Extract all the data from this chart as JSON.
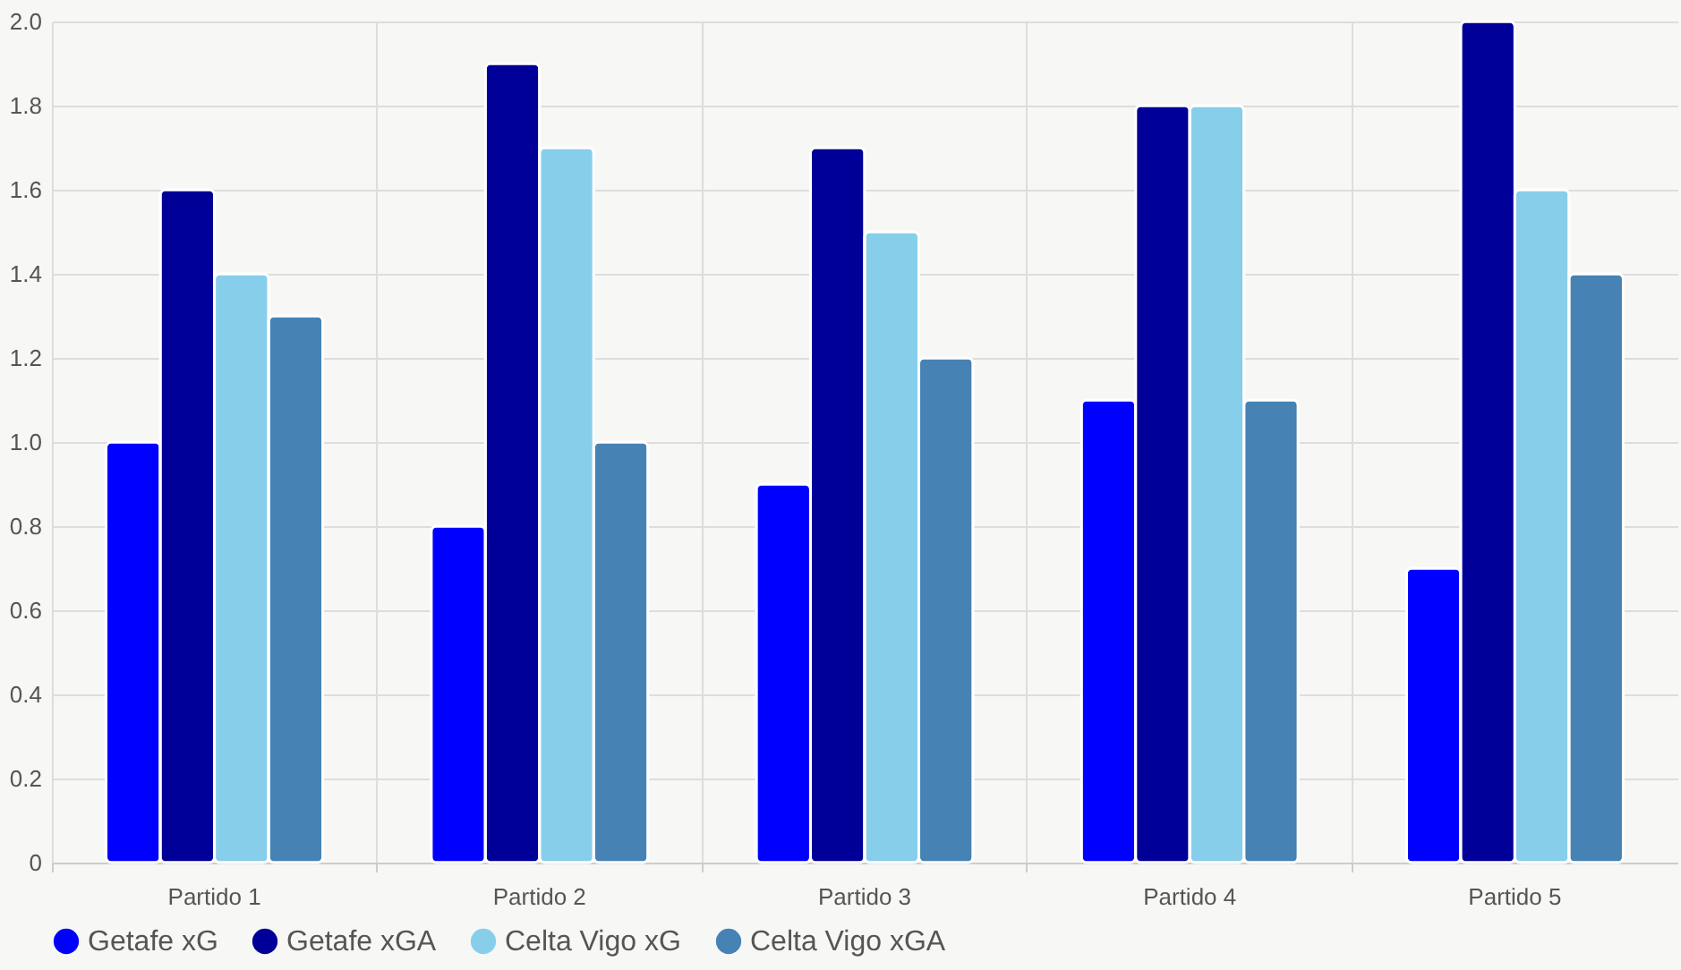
{
  "chart_data": {
    "type": "bar",
    "categories": [
      "Partido 1",
      "Partido 2",
      "Partido 3",
      "Partido 4",
      "Partido 5"
    ],
    "series": [
      {
        "name": "Getafe xG",
        "color": "#0000ff",
        "values": [
          1.0,
          0.8,
          0.9,
          1.1,
          0.7
        ]
      },
      {
        "name": "Getafe xGA",
        "color": "#000099",
        "values": [
          1.6,
          1.9,
          1.7,
          1.8,
          2.0
        ]
      },
      {
        "name": "Celta Vigo xG",
        "color": "#87ceeb",
        "values": [
          1.4,
          1.7,
          1.5,
          1.8,
          1.6
        ]
      },
      {
        "name": "Celta Vigo xGA",
        "color": "#4682b4",
        "values": [
          1.3,
          1.0,
          1.2,
          1.1,
          1.4
        ]
      }
    ],
    "ylim": [
      0,
      2
    ],
    "yticks": [
      0,
      0.2,
      0.4,
      0.6,
      0.8,
      {
        "value": 1,
        "label": "1.0"
      },
      1.2,
      1.4,
      1.6,
      1.8,
      {
        "value": 2,
        "label": "2.0"
      }
    ],
    "grid": true,
    "legend": "bottom"
  }
}
